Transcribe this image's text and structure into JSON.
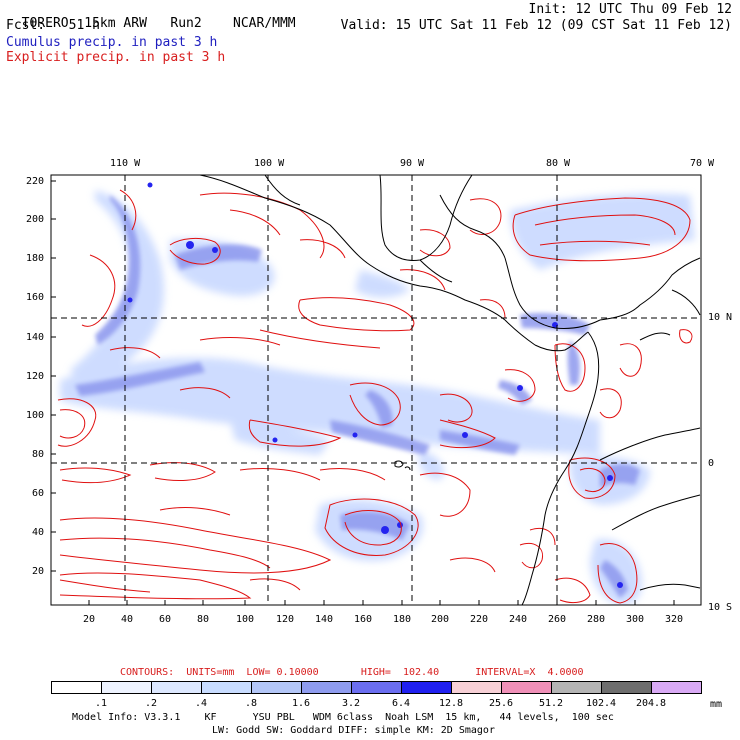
{
  "header": {
    "model": "TORERO",
    "resolution": "15km ARW",
    "run": "Run2",
    "org": "NCAR/MMM",
    "init": "Init: 12 UTC Thu 09 Feb 12",
    "fcst_label": "Fcst:",
    "fcst_value": "51 h",
    "valid": "Valid: 15 UTC Sat 11 Feb 12 (09 CST Sat 11 Feb 12)",
    "field1": "Cumulus precip. in past 3 h",
    "field2": "Explicit precip. in past 3 h"
  },
  "colors": {
    "field1_text": "#1f1fbf",
    "field2_text": "#d81e1e",
    "contour": "#e01010",
    "coast": "#000000"
  },
  "axes": {
    "top_lon": [
      "110 W",
      "100 W",
      "90 W",
      "80 W",
      "70 W"
    ],
    "right_lat": [
      "10 N",
      "0",
      "10 S"
    ],
    "left_ticks": [
      "220",
      "200",
      "180",
      "160",
      "140",
      "120",
      "100",
      "80",
      "60",
      "40",
      "20"
    ],
    "bottom_ticks": [
      "20",
      "40",
      "60",
      "80",
      "100",
      "120",
      "140",
      "160",
      "180",
      "200",
      "220",
      "240",
      "260",
      "280",
      "300",
      "320"
    ]
  },
  "contour_info": {
    "text": "CONTOURS:  UNITS=mm  LOW= 0.10000       HIGH=  102.40      INTERVAL=X  4.0000"
  },
  "legend": {
    "unit": "mm",
    "bins": [
      {
        "color": "#ffffff",
        "label": ".1"
      },
      {
        "color": "#eef3ff",
        "label": ".2"
      },
      {
        "color": "#dde8ff",
        "label": ".4"
      },
      {
        "color": "#c8dcff",
        "label": ".8"
      },
      {
        "color": "#b3c6f7",
        "label": "1.6"
      },
      {
        "color": "#8f9cef",
        "label": "3.2"
      },
      {
        "color": "#6b6ef0",
        "label": "6.4"
      },
      {
        "color": "#2020f0",
        "label": "12.8"
      },
      {
        "color": "#f7d0d6",
        "label": "25.6"
      },
      {
        "color": "#f090b8",
        "label": "51.2"
      },
      {
        "color": "#b4b4b4",
        "label": "102.4"
      },
      {
        "color": "#6e6e6e",
        "label": "204.8"
      },
      {
        "color": "#d9aaf5",
        "label": ""
      }
    ]
  },
  "footer": {
    "line1": "Model Info: V3.3.1    KF      YSU PBL   WDM 6class  Noah LSM  15 km,   44 levels,  100 sec",
    "line2": "LW: Godd SW: Goddard DIFF: simple KM: 2D Smagor"
  }
}
